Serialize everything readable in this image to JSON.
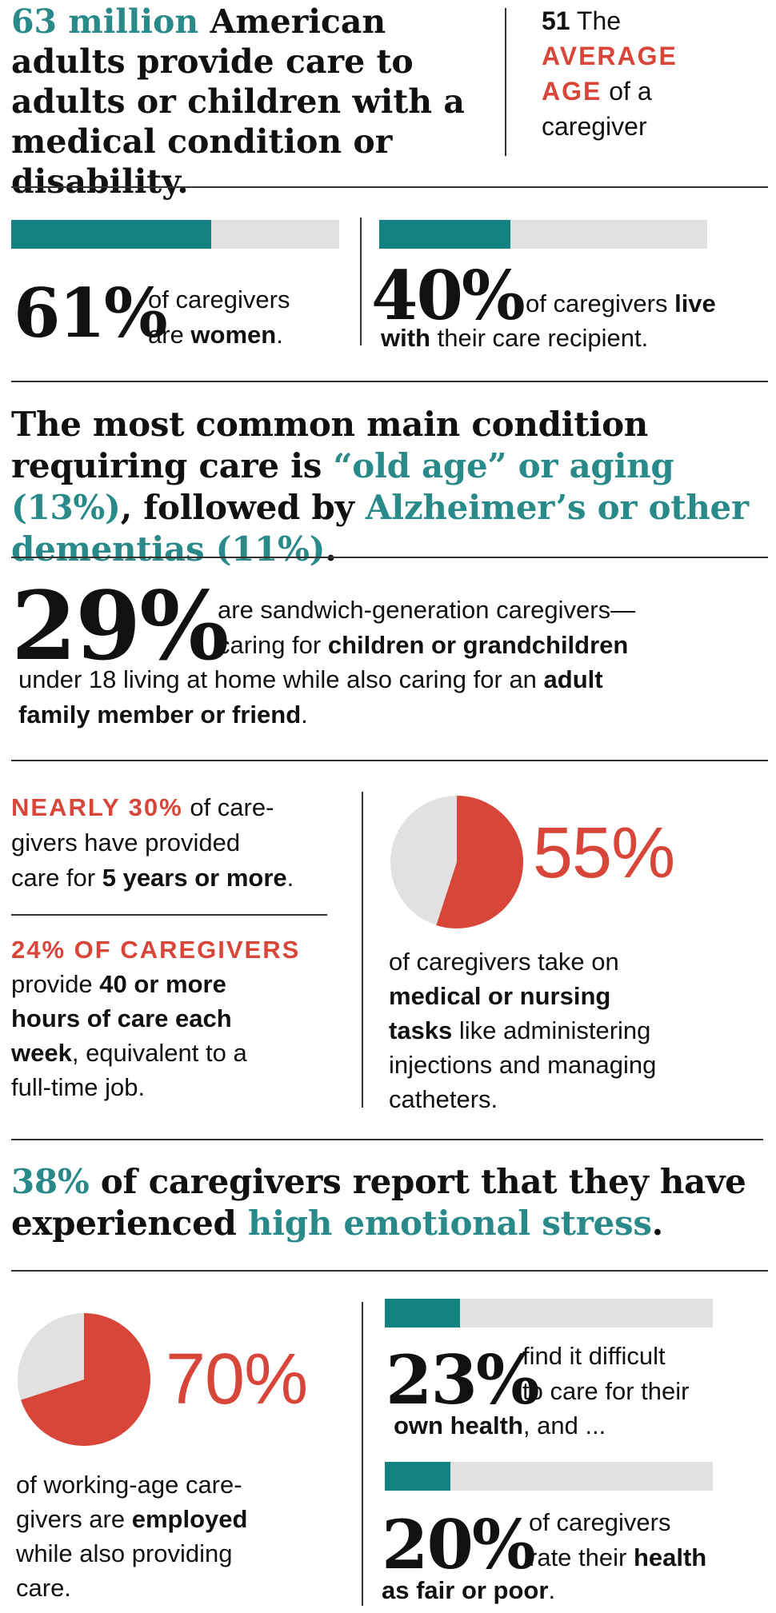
{
  "intro": {
    "stat": "63 million",
    "text": " American adults provide care to adults or children with a medical condition or disability."
  },
  "avg_age": {
    "number": "51",
    "the": " The",
    "line2": "AVERAGE",
    "line3a": "AGE",
    "line3b": " of a",
    "line4": "caregiver"
  },
  "women": {
    "percent": "61%",
    "fill": 0.61,
    "line1": "of caregivers",
    "line2a": "are ",
    "line2b": "women",
    "line2c": "."
  },
  "live_with": {
    "percent": "40%",
    "fill": 0.4,
    "line1a": "of caregivers ",
    "line1b": "live",
    "line2a": "with",
    "line2b": " their care recipient."
  },
  "condition": {
    "t1": "The most common main condition requiring care is ",
    "t2": "“old age” or aging (13%)",
    "t3": ", followed by ",
    "t4": "Alzheimer’s or other dementias (11%)",
    "t5": "."
  },
  "sandwich": {
    "percent": "29%",
    "line1": "are sandwich-generation caregivers—",
    "line2a": "caring for ",
    "line2b": "children or grandchildren",
    "line3a": "under 18 living at home while also caring for an ",
    "line3b": "adult",
    "line4a": "family member or friend",
    "line4b": "."
  },
  "years": {
    "lead": "NEARLY 30%",
    "t1": " of care-",
    "t2": "givers have provided",
    "t3a": "care for ",
    "t3b": "5 years or more",
    "t3c": "."
  },
  "hours": {
    "lead": "24% OF CAREGIVERS",
    "t1a": "provide ",
    "t1b": "40 or more",
    "t2": "hours of care each",
    "t3a": "week",
    "t3b": ", equivalent to a",
    "t4": "full-time job."
  },
  "medical": {
    "percent": "55%",
    "fill": 0.55,
    "t1": "of caregivers take on",
    "t2": "medical or nursing",
    "t3a": "tasks",
    "t3b": " like administering",
    "t4": "injections and managing",
    "t5": "catheters."
  },
  "stress": {
    "t1": "38%",
    "t2": " of caregivers report that they have experienced ",
    "t3": "high emotional stress",
    "t4": "."
  },
  "employed": {
    "percent": "70%",
    "fill": 0.7,
    "t1": "of working-age care-",
    "t2a": "givers are ",
    "t2b": "employed",
    "t3": "while also providing",
    "t4": "care."
  },
  "own_health": {
    "percent": "23%",
    "fill": 0.23,
    "t1": "find it difficult",
    "t2": "to care for their",
    "t3a": "own health",
    "t3b": ", and ..."
  },
  "fair_poor": {
    "percent": "20%",
    "fill": 0.2,
    "t1": "of caregivers",
    "t2a": "rate their ",
    "t2b": "health",
    "t3a": "as fair or poor",
    "t3b": "."
  },
  "colors": {
    "teal": "#138282",
    "teal_text": "#2a8a8a",
    "red": "#d8463a",
    "gray": "#e1e1e1"
  }
}
